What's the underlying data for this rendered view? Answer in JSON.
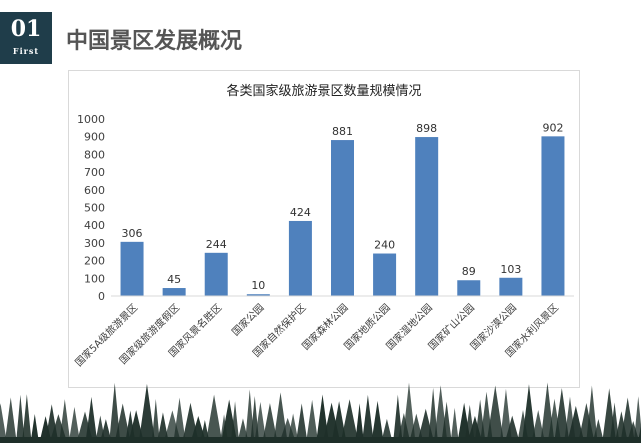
{
  "header": {
    "badge_number": "01",
    "badge_label": "First",
    "title": "中国景区发展概况"
  },
  "colors": {
    "bar": "#4f81bd",
    "badge": "#1f3d4a",
    "axis": "#d9d9d9",
    "trees": "#1e2f29"
  },
  "chart_data": {
    "type": "bar",
    "title": "各类国家级旅游景区数量规模情况",
    "xlabel": "",
    "ylabel": "",
    "ylim": [
      0,
      1000
    ],
    "yticks": [
      0,
      100,
      200,
      300,
      400,
      500,
      600,
      700,
      800,
      900,
      1000
    ],
    "categories": [
      "国家5A级旅游景区",
      "国家级旅游度假区",
      "国家风景名胜区",
      "国家公园",
      "国家自然保护区",
      "国家森林公园",
      "国家地质公园",
      "国家湿地公园",
      "国家矿山公园",
      "国家沙漠公园",
      "国家水利风景区"
    ],
    "values": [
      306,
      45,
      244,
      10,
      424,
      881,
      240,
      898,
      89,
      103,
      902
    ],
    "grid": false,
    "legend": "none",
    "data_labels": true
  }
}
